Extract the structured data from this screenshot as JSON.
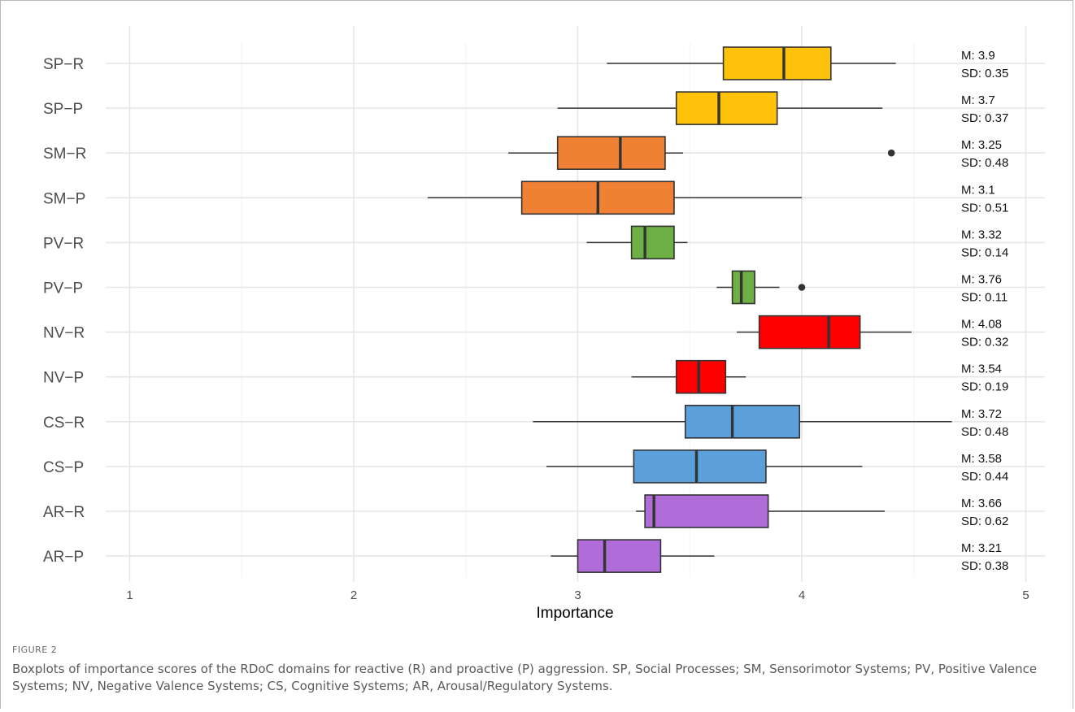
{
  "figure_label": "FIGURE 2",
  "caption": "Boxplots of importance scores of the RDoC domains for reactive (R) and proactive (P) aggression. SP, Social Processes; SM, Sensorimotor Systems; PV, Positive Valence Systems; NV, Negative Valence Systems; CS, Cognitive Systems; AR, Arousal/Regulatory Systems.",
  "chart_data": {
    "type": "boxplot",
    "orientation": "horizontal",
    "title": "",
    "xlabel": "Importance",
    "ylabel": "",
    "xlim": [
      0.9,
      5.2
    ],
    "x_ticks": [
      1,
      2,
      3,
      4,
      5
    ],
    "grid": true,
    "legend": "none",
    "colors": {
      "SP": "#FFC20A",
      "SM": "#F08034",
      "PV": "#6EAF46",
      "NV": "#FF0000",
      "CS": "#5B9FDB",
      "AR": "#B06CD8"
    },
    "boxes": [
      {
        "label": "SP−R",
        "group": "SP",
        "whisker_low": 3.13,
        "q1": 3.65,
        "median": 3.92,
        "q3": 4.13,
        "whisker_high": 4.42,
        "outliers": [],
        "mean_label": "M: 3.9",
        "sd_label": "SD: 0.35"
      },
      {
        "label": "SP−P",
        "group": "SP",
        "whisker_low": 2.91,
        "q1": 3.44,
        "median": 3.63,
        "q3": 3.89,
        "whisker_high": 4.36,
        "outliers": [],
        "mean_label": "M: 3.7",
        "sd_label": "SD: 0.37"
      },
      {
        "label": "SM−R",
        "group": "SM",
        "whisker_low": 2.69,
        "q1": 2.91,
        "median": 3.19,
        "q3": 3.39,
        "whisker_high": 3.47,
        "outliers": [
          4.4
        ],
        "mean_label": "M: 3.25",
        "sd_label": "SD: 0.48"
      },
      {
        "label": "SM−P",
        "group": "SM",
        "whisker_low": 2.33,
        "q1": 2.75,
        "median": 3.09,
        "q3": 3.43,
        "whisker_high": 4.0,
        "outliers": [],
        "mean_label": "M: 3.1",
        "sd_label": "SD: 0.51"
      },
      {
        "label": "PV−R",
        "group": "PV",
        "whisker_low": 3.04,
        "q1": 3.24,
        "median": 3.3,
        "q3": 3.43,
        "whisker_high": 3.49,
        "outliers": [],
        "mean_label": "M: 3.32",
        "sd_label": "SD: 0.14"
      },
      {
        "label": "PV−P",
        "group": "PV",
        "whisker_low": 3.62,
        "q1": 3.69,
        "median": 3.73,
        "q3": 3.79,
        "whisker_high": 3.9,
        "outliers": [
          4.0
        ],
        "mean_label": "M: 3.76",
        "sd_label": "SD: 0.11"
      },
      {
        "label": "NV−R",
        "group": "NV",
        "whisker_low": 3.71,
        "q1": 3.81,
        "median": 4.12,
        "q3": 4.26,
        "whisker_high": 4.49,
        "outliers": [],
        "mean_label": "M: 4.08",
        "sd_label": "SD: 0.32"
      },
      {
        "label": "NV−P",
        "group": "NV",
        "whisker_low": 3.24,
        "q1": 3.44,
        "median": 3.54,
        "q3": 3.66,
        "whisker_high": 3.75,
        "outliers": [],
        "mean_label": "M: 3.54",
        "sd_label": "SD: 0.19"
      },
      {
        "label": "CS−R",
        "group": "CS",
        "whisker_low": 2.8,
        "q1": 3.48,
        "median": 3.69,
        "q3": 3.99,
        "whisker_high": 4.67,
        "outliers": [],
        "mean_label": "M: 3.72",
        "sd_label": "SD: 0.48"
      },
      {
        "label": "CS−P",
        "group": "CS",
        "whisker_low": 2.86,
        "q1": 3.25,
        "median": 3.53,
        "q3": 3.84,
        "whisker_high": 4.27,
        "outliers": [],
        "mean_label": "M: 3.58",
        "sd_label": "SD: 0.44"
      },
      {
        "label": "AR−R",
        "group": "AR",
        "whisker_low": 3.26,
        "q1": 3.3,
        "median": 3.34,
        "q3": 3.85,
        "whisker_high": 4.37,
        "outliers": [],
        "mean_label": "M: 3.66",
        "sd_label": "SD: 0.62"
      },
      {
        "label": "AR−P",
        "group": "AR",
        "whisker_low": 2.88,
        "q1": 3.0,
        "median": 3.12,
        "q3": 3.37,
        "whisker_high": 3.61,
        "outliers": [],
        "mean_label": "M: 3.21",
        "sd_label": "SD: 0.38"
      }
    ]
  }
}
